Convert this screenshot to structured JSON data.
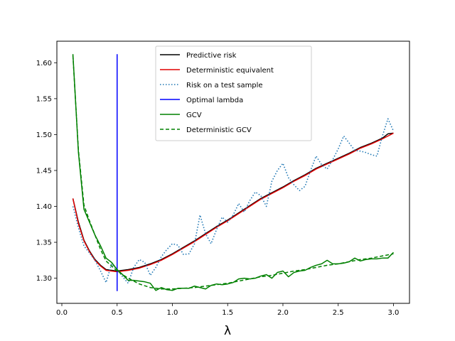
{
  "chart_data": {
    "type": "line",
    "title": "",
    "xlabel": "λ",
    "ylabel": "",
    "xlim": [
      -0.045,
      3.145
    ],
    "ylim": [
      1.265,
      1.63
    ],
    "xticks": [
      0.0,
      0.5,
      1.0,
      1.5,
      2.0,
      2.5,
      3.0
    ],
    "xtick_labels": [
      "0.0",
      "0.5",
      "1.0",
      "1.5",
      "2.0",
      "2.5",
      "3.0"
    ],
    "yticks": [
      1.3,
      1.35,
      1.4,
      1.45,
      1.5,
      1.55,
      1.6
    ],
    "ytick_labels": [
      "1.30",
      "1.35",
      "1.40",
      "1.45",
      "1.50",
      "1.55",
      "1.60"
    ],
    "grid": false,
    "legend_position": "upper-center",
    "series": [
      {
        "name": "Predictive risk",
        "color": "#000000",
        "style": "solid",
        "x": [
          0.1,
          0.15,
          0.2,
          0.25,
          0.3,
          0.35,
          0.4,
          0.5,
          0.6,
          0.7,
          0.8,
          0.9,
          1.0,
          1.1,
          1.2,
          1.3,
          1.4,
          1.5,
          1.6,
          1.7,
          1.8,
          1.9,
          2.0,
          2.1,
          2.2,
          2.3,
          2.4,
          2.5,
          2.6,
          2.7,
          2.8,
          2.9,
          2.95,
          3.0
        ],
        "y": [
          1.411,
          1.378,
          1.353,
          1.338,
          1.326,
          1.318,
          1.312,
          1.31,
          1.312,
          1.315,
          1.32,
          1.326,
          1.334,
          1.343,
          1.352,
          1.362,
          1.372,
          1.381,
          1.391,
          1.401,
          1.411,
          1.419,
          1.427,
          1.436,
          1.444,
          1.453,
          1.46,
          1.467,
          1.474,
          1.482,
          1.488,
          1.495,
          1.501,
          1.502
        ]
      },
      {
        "name": "Deterministic equivalent",
        "color": "#e00000",
        "style": "solid",
        "x": [
          0.1,
          0.15,
          0.2,
          0.25,
          0.3,
          0.35,
          0.4,
          0.5,
          0.6,
          0.7,
          0.8,
          0.9,
          1.0,
          1.1,
          1.2,
          1.3,
          1.4,
          1.5,
          1.6,
          1.7,
          1.8,
          1.9,
          2.0,
          2.1,
          2.2,
          2.3,
          2.4,
          2.5,
          2.6,
          2.7,
          2.8,
          2.9,
          3.0
        ],
        "y": [
          1.411,
          1.376,
          1.352,
          1.337,
          1.325,
          1.317,
          1.311,
          1.309,
          1.311,
          1.314,
          1.319,
          1.325,
          1.333,
          1.342,
          1.351,
          1.361,
          1.371,
          1.38,
          1.39,
          1.4,
          1.41,
          1.418,
          1.426,
          1.435,
          1.443,
          1.452,
          1.459,
          1.466,
          1.473,
          1.481,
          1.487,
          1.494,
          1.502
        ]
      },
      {
        "name": "Risk on a test sample",
        "color": "#1f77b4",
        "style": "dotted",
        "x": [
          0.1,
          0.15,
          0.2,
          0.25,
          0.3,
          0.35,
          0.4,
          0.45,
          0.5,
          0.55,
          0.6,
          0.65,
          0.7,
          0.75,
          0.8,
          0.85,
          0.9,
          0.95,
          1.0,
          1.05,
          1.1,
          1.15,
          1.2,
          1.25,
          1.3,
          1.35,
          1.4,
          1.45,
          1.5,
          1.55,
          1.6,
          1.65,
          1.7,
          1.75,
          1.8,
          1.85,
          1.9,
          1.95,
          2.0,
          2.05,
          2.1,
          2.15,
          2.2,
          2.25,
          2.3,
          2.35,
          2.4,
          2.45,
          2.5,
          2.55,
          2.6,
          2.65,
          2.7,
          2.75,
          2.8,
          2.85,
          2.9,
          2.95,
          3.0
        ],
        "y": [
          1.4,
          1.37,
          1.345,
          1.335,
          1.325,
          1.31,
          1.294,
          1.32,
          1.312,
          1.302,
          1.293,
          1.315,
          1.326,
          1.322,
          1.304,
          1.315,
          1.33,
          1.34,
          1.348,
          1.346,
          1.333,
          1.334,
          1.348,
          1.388,
          1.362,
          1.348,
          1.368,
          1.385,
          1.378,
          1.388,
          1.404,
          1.392,
          1.408,
          1.42,
          1.415,
          1.4,
          1.435,
          1.45,
          1.46,
          1.44,
          1.43,
          1.422,
          1.428,
          1.45,
          1.47,
          1.458,
          1.452,
          1.465,
          1.48,
          1.498,
          1.488,
          1.478,
          1.477,
          1.475,
          1.472,
          1.47,
          1.498,
          1.522,
          1.505
        ]
      },
      {
        "name": "Optimal lambda",
        "color": "#0000ff",
        "style": "solid",
        "x": [
          0.5,
          0.5
        ],
        "y": [
          1.282,
          1.612
        ]
      },
      {
        "name": "GCV",
        "color": "#008000",
        "style": "solid",
        "x": [
          0.1,
          0.15,
          0.2,
          0.25,
          0.3,
          0.35,
          0.4,
          0.45,
          0.5,
          0.55,
          0.6,
          0.65,
          0.7,
          0.75,
          0.8,
          0.85,
          0.9,
          0.95,
          1.0,
          1.05,
          1.1,
          1.15,
          1.2,
          1.25,
          1.3,
          1.35,
          1.4,
          1.45,
          1.5,
          1.55,
          1.6,
          1.65,
          1.7,
          1.75,
          1.8,
          1.85,
          1.9,
          1.95,
          2.0,
          2.05,
          2.1,
          2.15,
          2.2,
          2.25,
          2.3,
          2.35,
          2.4,
          2.45,
          2.5,
          2.55,
          2.6,
          2.65,
          2.7,
          2.75,
          2.8,
          2.85,
          2.9,
          2.95,
          3.0
        ],
        "y": [
          1.612,
          1.475,
          1.396,
          1.378,
          1.36,
          1.345,
          1.328,
          1.322,
          1.312,
          1.305,
          1.297,
          1.297,
          1.296,
          1.295,
          1.293,
          1.283,
          1.287,
          1.284,
          1.283,
          1.286,
          1.286,
          1.286,
          1.289,
          1.287,
          1.285,
          1.29,
          1.292,
          1.291,
          1.292,
          1.294,
          1.299,
          1.3,
          1.299,
          1.3,
          1.303,
          1.305,
          1.3,
          1.308,
          1.31,
          1.302,
          1.308,
          1.31,
          1.311,
          1.315,
          1.318,
          1.32,
          1.325,
          1.32,
          1.32,
          1.321,
          1.323,
          1.328,
          1.324,
          1.326,
          1.327,
          1.327,
          1.328,
          1.328,
          1.336
        ]
      },
      {
        "name": "Deterministic GCV",
        "color": "#008000",
        "style": "dashed",
        "x": [
          0.1,
          0.15,
          0.2,
          0.25,
          0.3,
          0.35,
          0.4,
          0.5,
          0.6,
          0.7,
          0.8,
          0.9,
          1.0,
          1.1,
          1.2,
          1.3,
          1.4,
          1.5,
          1.6,
          1.7,
          1.8,
          1.9,
          2.0,
          2.1,
          2.2,
          2.3,
          2.4,
          2.5,
          2.6,
          2.7,
          2.8,
          2.9,
          3.0
        ],
        "y": [
          1.61,
          1.478,
          1.402,
          1.38,
          1.36,
          1.34,
          1.324,
          1.31,
          1.3,
          1.292,
          1.287,
          1.285,
          1.285,
          1.286,
          1.287,
          1.289,
          1.291,
          1.293,
          1.296,
          1.299,
          1.302,
          1.304,
          1.307,
          1.31,
          1.312,
          1.315,
          1.318,
          1.32,
          1.323,
          1.326,
          1.328,
          1.331,
          1.334
        ]
      }
    ]
  }
}
